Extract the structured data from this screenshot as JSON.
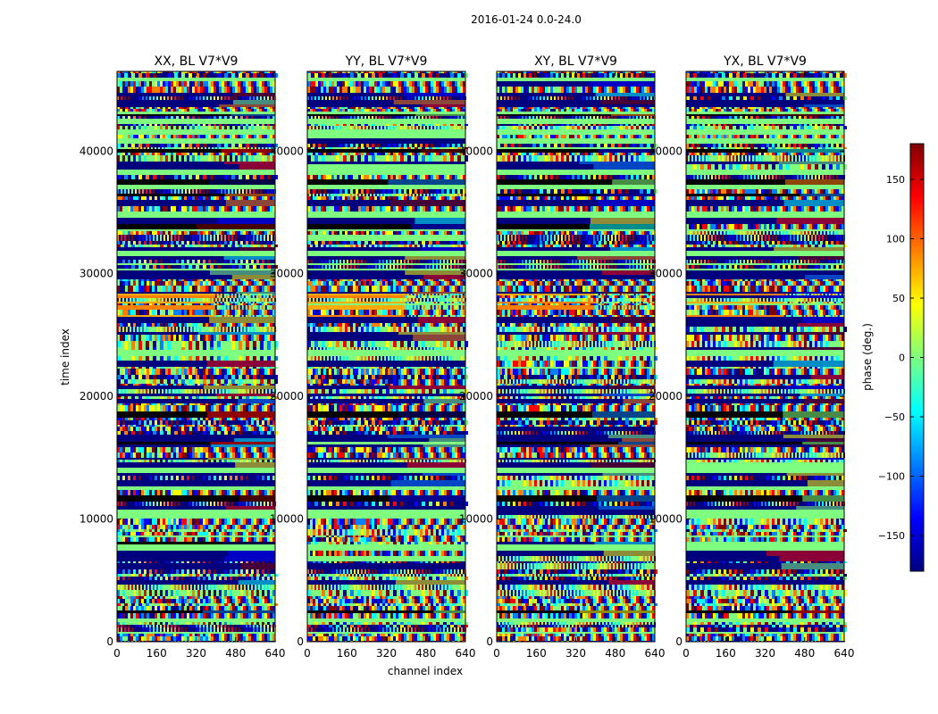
{
  "figure_title": "2016-01-24 0.0-24.0",
  "colormap": [
    "#00007f",
    "#0000ff",
    "#007fff",
    "#00ffff",
    "#7fff7f",
    "#ffff00",
    "#ff7f00",
    "#ff0000",
    "#7f0000"
  ],
  "chart_data": {
    "type": "heatmap",
    "title": "2016-01-24 0.0-24.0",
    "xlabel": "channel index",
    "ylabel": "time index",
    "xlim": [
      0,
      640
    ],
    "ylim": [
      0,
      46500
    ],
    "xticks": [
      0,
      160,
      320,
      480,
      640
    ],
    "yticks": [
      0,
      10000,
      20000,
      30000,
      40000
    ],
    "panels": [
      {
        "title": "XX, BL V7*V9",
        "polarization": "XX",
        "baseline": "V7*V9"
      },
      {
        "title": "YY, BL V7*V9",
        "polarization": "YY",
        "baseline": "V7*V9"
      },
      {
        "title": "XY, BL V7*V9",
        "polarization": "XY",
        "baseline": "V7*V9"
      },
      {
        "title": "YX, BL V7*V9",
        "polarization": "YX",
        "baseline": "V7*V9"
      }
    ],
    "colorbar": {
      "label": "phase (deg.)",
      "range": [
        -180,
        180
      ],
      "ticks": [
        150,
        100,
        50,
        0,
        -50,
        -100,
        -150
      ],
      "tick_labels": [
        "150",
        "100",
        "50",
        "0",
        "−50",
        "−100",
        "−150"
      ]
    }
  }
}
